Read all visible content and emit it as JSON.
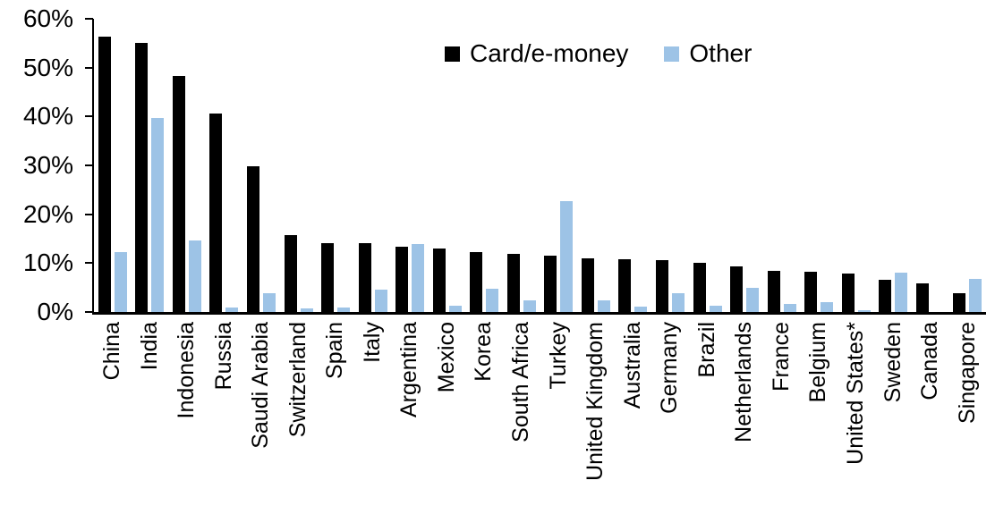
{
  "chart_data": {
    "type": "bar",
    "title": "",
    "xlabel": "",
    "ylabel": "",
    "ylim": [
      0,
      60
    ],
    "ytick_step": 10,
    "yticks": [
      "60%",
      "50%",
      "40%",
      "30%",
      "20%",
      "10%",
      "0%"
    ],
    "grid": false,
    "legend_position": "top-center",
    "background_color": "#FFFFFF",
    "axis_color": "#000000",
    "categories": [
      "China",
      "India",
      "Indonesia",
      "Russia",
      "Saudi Arabia",
      "Switzerland",
      "Spain",
      "Italy",
      "Argentina",
      "Mexico",
      "Korea",
      "South Africa",
      "Turkey",
      "United Kingdom",
      "Australia",
      "Germany",
      "Brazil",
      "Netherlands",
      "France",
      "Belgium",
      "United States*",
      "Sweden",
      "Canada",
      "Singapore"
    ],
    "series": [
      {
        "name": "Card/e-money",
        "color": "#000000",
        "values": [
          56.3,
          55.0,
          48.3,
          40.6,
          29.8,
          15.7,
          14.1,
          14.0,
          13.4,
          12.9,
          12.3,
          11.9,
          11.6,
          11.0,
          10.8,
          10.6,
          10.0,
          9.3,
          8.5,
          8.2,
          7.9,
          6.5,
          5.9,
          3.8
        ]
      },
      {
        "name": "Other",
        "color": "#9DC3E6",
        "values": [
          12.3,
          39.7,
          14.6,
          1.0,
          3.8,
          0.8,
          0.9,
          4.6,
          13.9,
          1.3,
          4.7,
          2.4,
          22.6,
          2.3,
          1.1,
          3.9,
          1.2,
          4.9,
          1.6,
          2.1,
          0.3,
          8.1,
          0.0,
          6.7
        ]
      }
    ]
  }
}
